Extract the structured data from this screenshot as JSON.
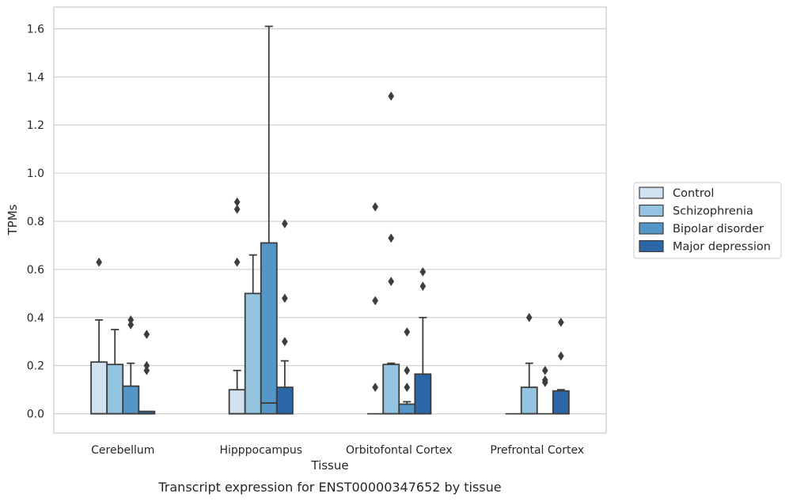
{
  "caption": "Transcript expression for ENST00000347652 by tissue",
  "chart_data": {
    "type": "box",
    "xlabel": "Tissue",
    "ylabel": "TPMs",
    "ylim": [
      -0.08,
      1.69
    ],
    "yticks": [
      0.0,
      0.2,
      0.4,
      0.6,
      0.8,
      1.0,
      1.2,
      1.4,
      1.6
    ],
    "ytick_labels": [
      "0.0",
      "0.2",
      "0.4",
      "0.6",
      "0.8",
      "1.0",
      "1.2",
      "1.4",
      "1.6"
    ],
    "grid": "horizontal",
    "legend_position": "right",
    "categories": [
      "Cerebellum",
      "Hipppocampus",
      "Orbitofontal Cortex",
      "Prefrontal Cortex"
    ],
    "series": [
      {
        "name": "Control",
        "color": "#d0e1f0",
        "boxes": [
          {
            "min": 0.0,
            "q1": 0.0,
            "median": 0.0,
            "q3": 0.215,
            "max": 0.39,
            "outliers": [
              0.63
            ]
          },
          {
            "min": 0.0,
            "q1": 0.0,
            "median": 0.0,
            "q3": 0.1,
            "max": 0.18,
            "outliers": [
              0.63,
              0.85,
              0.88
            ]
          },
          {
            "min": 0.0,
            "q1": 0.0,
            "median": 0.0,
            "q3": 0.0,
            "max": 0.0,
            "outliers": [
              0.11,
              0.47,
              0.86
            ]
          },
          {
            "min": 0.0,
            "q1": 0.0,
            "median": 0.0,
            "q3": 0.0,
            "max": 0.0,
            "outliers": []
          }
        ]
      },
      {
        "name": "Schizophrenia",
        "color": "#94c4df",
        "boxes": [
          {
            "min": 0.0,
            "q1": 0.0,
            "median": 0.0,
            "q3": 0.205,
            "max": 0.35,
            "outliers": []
          },
          {
            "min": 0.0,
            "q1": 0.0,
            "median": 0.0,
            "q3": 0.5,
            "max": 0.66,
            "outliers": []
          },
          {
            "min": 0.0,
            "q1": 0.0,
            "median": 0.0,
            "q3": 0.205,
            "max": 0.21,
            "outliers": [
              0.55,
              0.73,
              1.32
            ]
          },
          {
            "min": 0.0,
            "q1": 0.0,
            "median": 0.0,
            "q3": 0.11,
            "max": 0.21,
            "outliers": [
              0.4
            ]
          }
        ]
      },
      {
        "name": "Bipolar disorder",
        "color": "#5596c8",
        "boxes": [
          {
            "min": 0.0,
            "q1": 0.0,
            "median": 0.0,
            "q3": 0.115,
            "max": 0.21,
            "outliers": [
              0.37,
              0.39
            ]
          },
          {
            "min": 0.0,
            "q1": 0.0,
            "median": 0.045,
            "q3": 0.71,
            "max": 1.61,
            "outliers": []
          },
          {
            "min": 0.0,
            "q1": 0.0,
            "median": 0.0,
            "q3": 0.04,
            "max": 0.05,
            "outliers": [
              0.11,
              0.18,
              0.34
            ]
          },
          {
            "min": 0.0,
            "q1": 0.0,
            "median": 0.0,
            "q3": 0.0,
            "max": 0.0,
            "outliers": [
              0.13,
              0.14,
              0.18
            ]
          }
        ]
      },
      {
        "name": "Major depression",
        "color": "#2b66a6",
        "boxes": [
          {
            "min": 0.0,
            "q1": 0.0,
            "median": 0.0,
            "q3": 0.01,
            "max": 0.01,
            "outliers": [
              0.18,
              0.2,
              0.33
            ]
          },
          {
            "min": 0.0,
            "q1": 0.0,
            "median": 0.0,
            "q3": 0.11,
            "max": 0.22,
            "outliers": [
              0.3,
              0.48,
              0.79
            ]
          },
          {
            "min": 0.0,
            "q1": 0.0,
            "median": 0.0,
            "q3": 0.165,
            "max": 0.4,
            "outliers": [
              0.53,
              0.59
            ]
          },
          {
            "min": 0.0,
            "q1": 0.0,
            "median": 0.0,
            "q3": 0.095,
            "max": 0.1,
            "outliers": [
              0.24,
              0.38
            ]
          }
        ]
      }
    ]
  }
}
